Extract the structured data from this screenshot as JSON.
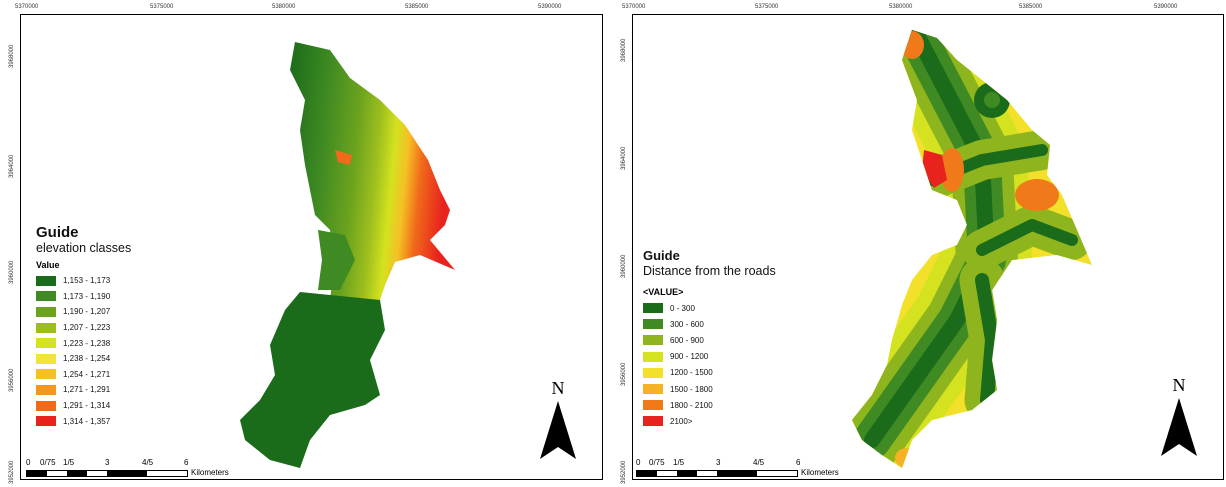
{
  "left_map": {
    "x_ticks": [
      "5370000",
      "5375000",
      "5380000",
      "5385000",
      "5390000"
    ],
    "y_ticks": [
      "3968000",
      "3964000",
      "3960000",
      "3956000",
      "3952000"
    ],
    "legend": {
      "title": "Guide",
      "subtitle": "elevation classes",
      "field": "Value",
      "classes": [
        {
          "label": "1,153 - 1,173",
          "color": "#1a6b1a"
        },
        {
          "label": "1,173 - 1,190",
          "color": "#3f8a22"
        },
        {
          "label": "1,190 - 1,207",
          "color": "#6ca31e"
        },
        {
          "label": "1,207 - 1,223",
          "color": "#9dbf1e"
        },
        {
          "label": "1,223 - 1,238",
          "color": "#d4e21f"
        },
        {
          "label": "1,238 - 1,254",
          "color": "#f2e53a"
        },
        {
          "label": "1,254 - 1,271",
          "color": "#f5c025"
        },
        {
          "label": "1,271 - 1,291",
          "color": "#f5961e"
        },
        {
          "label": "1,291 - 1,314",
          "color": "#f06a1a"
        },
        {
          "label": "1,314 - 1,357",
          "color": "#e8231e"
        }
      ]
    },
    "scale": {
      "labels": [
        "0",
        "0/75",
        "1/5",
        "3",
        "4/5",
        "6"
      ],
      "unit": "Kilometers"
    },
    "north": "N"
  },
  "right_map": {
    "x_ticks": [
      "5370000",
      "5375000",
      "5380000",
      "5385000",
      "5390000"
    ],
    "y_ticks": [
      "3968000",
      "3964000",
      "3960000",
      "3956000",
      "3952000"
    ],
    "legend": {
      "title": "Guide",
      "subtitle": "Distance from the roads",
      "field": "<VALUE>",
      "classes": [
        {
          "label": "0 - 300",
          "color": "#1a6b1a"
        },
        {
          "label": "300 - 600",
          "color": "#3f8a22"
        },
        {
          "label": "600 - 900",
          "color": "#8fb51e"
        },
        {
          "label": "900 - 1200",
          "color": "#d4e21f"
        },
        {
          "label": "1200 - 1500",
          "color": "#f2e02a"
        },
        {
          "label": "1500 - 1800",
          "color": "#f5b225"
        },
        {
          "label": "1800 - 2100",
          "color": "#f07a1a"
        },
        {
          "label": "2100>",
          "color": "#e8231e"
        }
      ]
    },
    "scale": {
      "labels": [
        "0",
        "0/75",
        "1/5",
        "3",
        "4/5",
        "6"
      ],
      "unit": "Kilometers"
    },
    "north": "N"
  }
}
